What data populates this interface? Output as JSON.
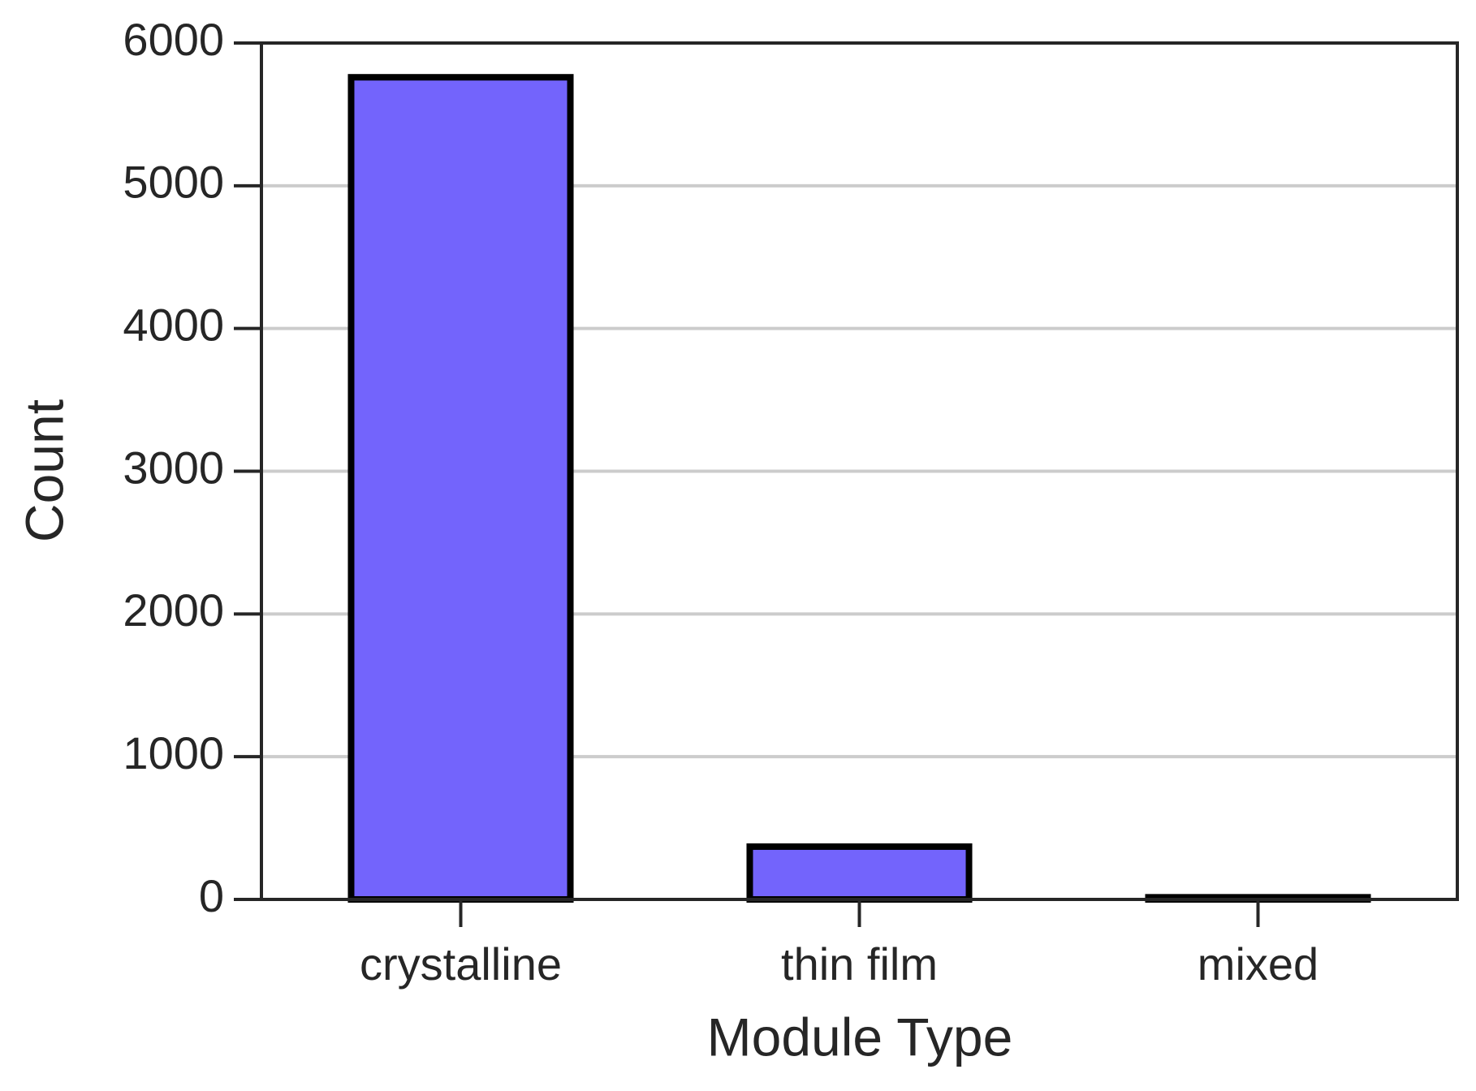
{
  "chart_data": {
    "type": "bar",
    "x_label": "Module Type",
    "y_label": "Count",
    "categories": [
      "crystalline",
      "thin film",
      "mixed"
    ],
    "values": [
      5760,
      370,
      15
    ],
    "color": "#7364fc",
    "ylim": [
      0,
      6000
    ],
    "yticks": [
      0,
      1000,
      2000,
      3000,
      4000,
      5000,
      6000
    ],
    "grid": true
  }
}
